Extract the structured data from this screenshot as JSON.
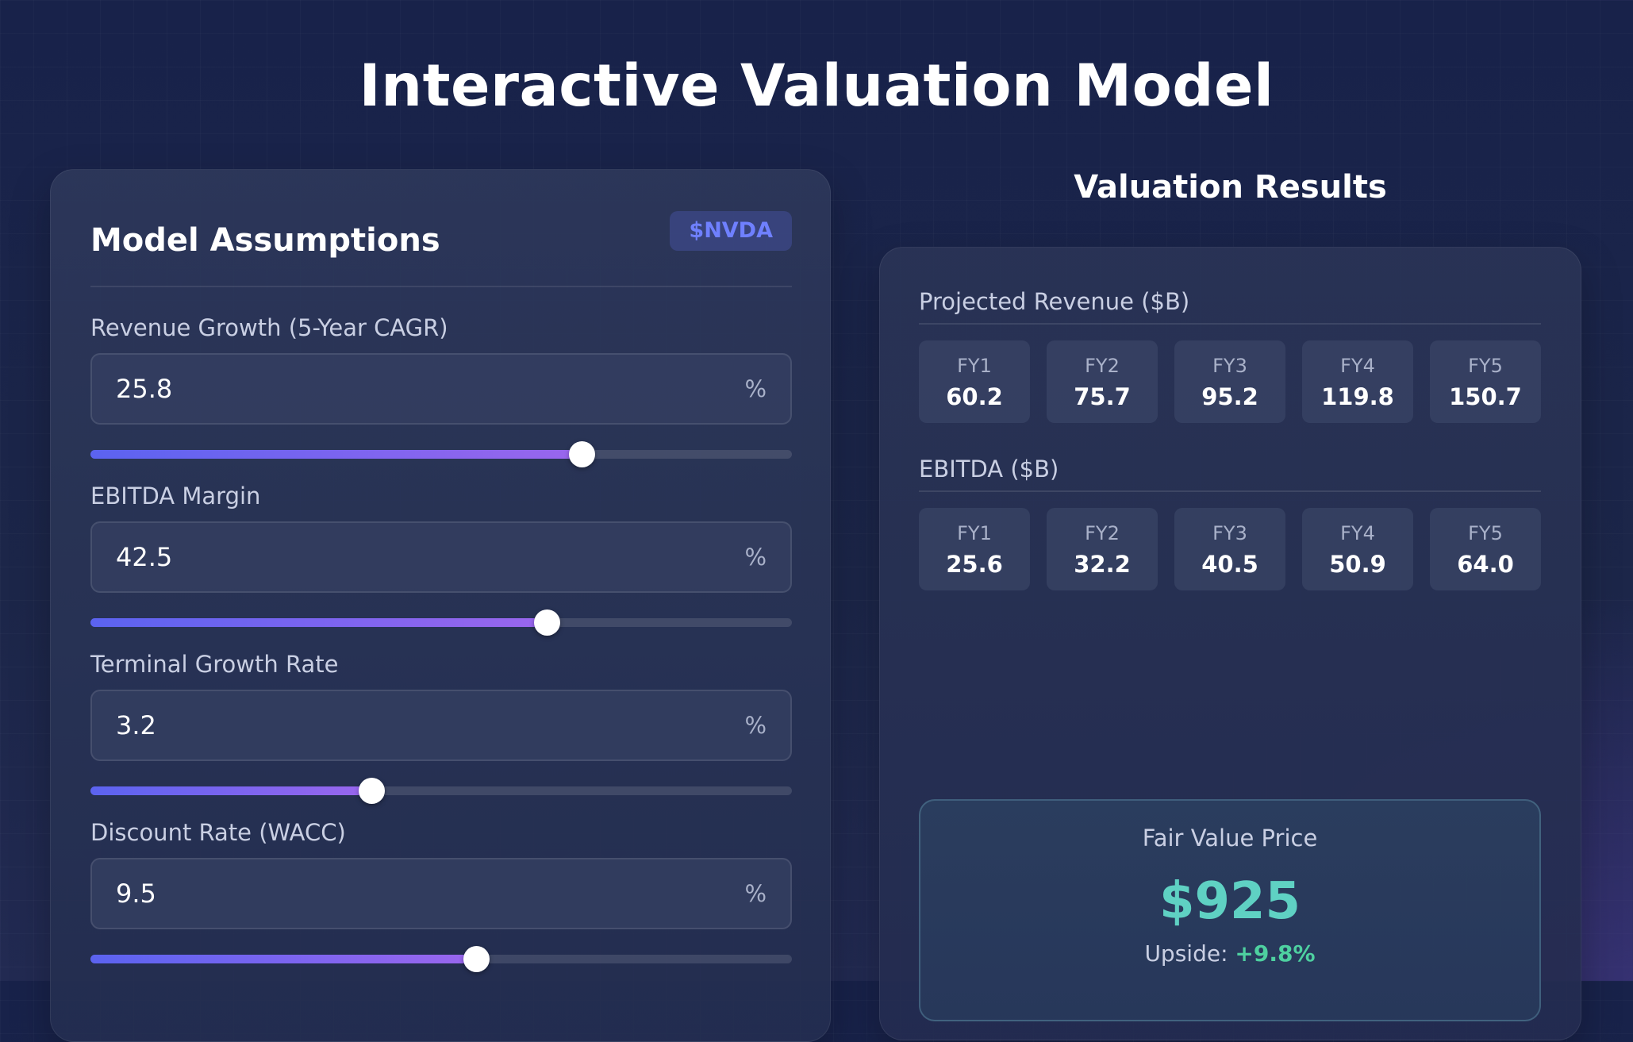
{
  "page": {
    "title": "Interactive Valuation Model"
  },
  "assumptions": {
    "title": "Model Assumptions",
    "ticker": "$NVDA",
    "fields": [
      {
        "label": "Revenue Growth (5-Year CAGR)",
        "value": "25.8",
        "unit": "%",
        "slider_fraction": 0.7
      },
      {
        "label": "EBITDA Margin",
        "value": "42.5",
        "unit": "%",
        "slider_fraction": 0.65
      },
      {
        "label": "Terminal Growth Rate",
        "value": "3.2",
        "unit": "%",
        "slider_fraction": 0.4
      },
      {
        "label": "Discount Rate (WACC)",
        "value": "9.5",
        "unit": "%",
        "slider_fraction": 0.55
      }
    ]
  },
  "results": {
    "title": "Valuation Results",
    "revenue": {
      "title": "Projected Revenue ($B)",
      "years": [
        {
          "label": "FY1",
          "value": "60.2"
        },
        {
          "label": "FY2",
          "value": "75.7"
        },
        {
          "label": "FY3",
          "value": "95.2"
        },
        {
          "label": "FY4",
          "value": "119.8"
        },
        {
          "label": "FY5",
          "value": "150.7"
        }
      ]
    },
    "ebitda": {
      "title": "EBITDA ($B)",
      "years": [
        {
          "label": "FY1",
          "value": "25.6"
        },
        {
          "label": "FY2",
          "value": "32.2"
        },
        {
          "label": "FY3",
          "value": "40.5"
        },
        {
          "label": "FY4",
          "value": "50.9"
        },
        {
          "label": "FY5",
          "value": "64.0"
        }
      ]
    },
    "fair_value": {
      "label": "Fair Value Price",
      "price": "$925",
      "upside_label": "Upside:",
      "upside_value": "+9.8%"
    }
  },
  "colors": {
    "accent_blue": "#6f80ff",
    "slider_start": "#5b63f0",
    "slider_end": "#9a66ee",
    "fair_value": "#5fd1c3",
    "upside": "#4ed0a0"
  }
}
